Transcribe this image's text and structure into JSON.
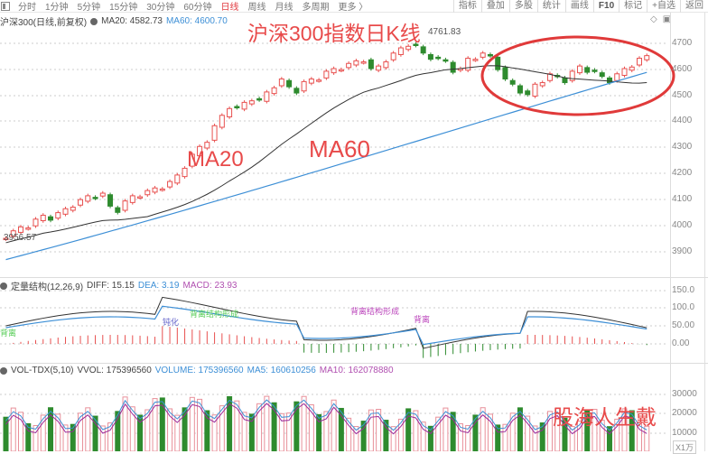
{
  "toolbar": {
    "tabs": [
      {
        "label": "分时",
        "active": false
      },
      {
        "label": "1分钟",
        "active": false
      },
      {
        "label": "5分钟",
        "active": false
      },
      {
        "label": "15分钟",
        "active": false
      },
      {
        "label": "30分钟",
        "active": false
      },
      {
        "label": "60分钟",
        "active": false
      },
      {
        "label": "日线",
        "active": true
      },
      {
        "label": "周线",
        "active": false
      },
      {
        "label": "月线",
        "active": false
      },
      {
        "label": "多周期",
        "active": false
      },
      {
        "label": "更多 〉",
        "active": false
      }
    ],
    "right_tools": [
      "指标",
      "叠加",
      "多股",
      "统计",
      "画线",
      "F10",
      "标记",
      "+自选",
      "返回"
    ]
  },
  "main_chart": {
    "header": {
      "name": "沪深300(日线,前复权)",
      "ma20": "MA20: 4582.73",
      "ma60": "MA60: 4600.70"
    },
    "title_overlay": "沪深300指数日K线",
    "max_label": "4761.83",
    "min_label": "3956.57",
    "annotations": {
      "ma20": "MA20",
      "ma60": "MA60"
    },
    "y_axis": [
      "4700",
      "4600",
      "4500",
      "4400",
      "4300",
      "4200",
      "4100",
      "4000",
      "3900"
    ]
  },
  "macd_panel": {
    "header": {
      "name": "定量结构(12,26,9)",
      "diff": "DIFF: 15.15",
      "dea": "DEA: 3.19",
      "macd": "MACD: 23.93"
    },
    "annotations": [
      "背离",
      "钝化",
      "背离结构形成",
      "背离结构形成",
      "背离"
    ],
    "y_axis": [
      "150.0",
      "100.0",
      "50.00",
      "0.00"
    ]
  },
  "vol_panel": {
    "header": {
      "name": "VOL-TDX(5,10)",
      "vvol": "VVOL: 175396560",
      "volume": "VOLUME: 175396560",
      "ma5": "MA5: 160610256",
      "ma10": "MA10: 162078880"
    },
    "watermark": "股海人生戴",
    "y_axis": [
      "30000",
      "20000",
      "10000"
    ],
    "unit": "X1万"
  },
  "colors": {
    "up": "#e8504f",
    "down": "#2e8b2e",
    "ma20": "#333333",
    "ma60": "#3d8fd6",
    "annotation": "#e84a4a"
  }
}
